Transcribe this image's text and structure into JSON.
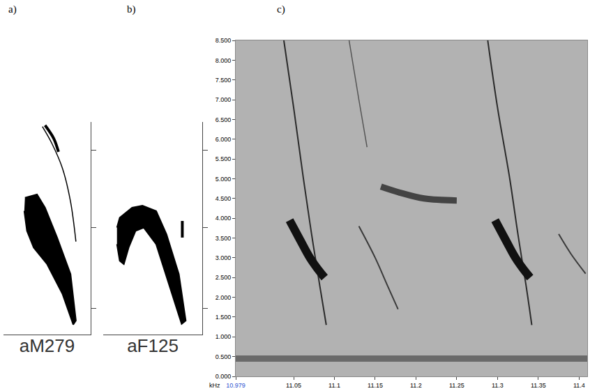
{
  "chart_data": [
    {
      "type": "shape",
      "title": "a)",
      "xlabel": "aM279",
      "xlim": [
        0,
        130
      ],
      "ylim": [
        70,
        390
      ],
      "yticks": [
        109,
        231,
        348
      ],
      "tick_labels": false,
      "grid": false,
      "series": [
        {
          "type": "fill",
          "color": "#000000",
          "line_style": "thin",
          "x": [
            32,
            50,
            62,
            80,
            100,
            108,
            104,
            88,
            65,
            45,
            35,
            31
          ],
          "values": [
            276,
            281,
            261,
            216,
            161,
            91,
            85,
            131,
            176,
            201,
            226,
            256
          ]
        },
        {
          "type": "line",
          "color": "#000000",
          "line_style": "faint",
          "x": [
            58,
            72,
            88,
            100,
            108
          ],
          "values": [
            383,
            358,
            320,
            270,
            210
          ]
        },
        {
          "type": "line",
          "color": "#000000",
          "line_style": "medium",
          "x": [
            62,
            75,
            82
          ],
          "values": [
            385,
            365,
            345
          ]
        }
      ]
    },
    {
      "type": "shape",
      "title": "b)",
      "xlabel": "aF125",
      "xlim": [
        148,
        292
      ],
      "ylim": [
        70,
        390
      ],
      "yticks": [
        109,
        231,
        348
      ],
      "tick_labels": false,
      "grid": false,
      "series": [
        {
          "type": "fill",
          "color": "#000000",
          "line_style": "thin",
          "x": [
            168,
            172,
            190,
            205,
            225,
            240,
            258,
            268,
            262,
            245,
            225,
            207,
            195,
            185,
            178,
            172,
            168
          ],
          "values": [
            231,
            246,
            261,
            264,
            256,
            221,
            161,
            91,
            86,
            141,
            206,
            231,
            226,
            201,
            176,
            181,
            206
          ]
        },
        {
          "type": "line",
          "color": "#000000",
          "line_style": "medium",
          "x": [
            263,
            263
          ],
          "values": [
            241,
            216
          ]
        }
      ]
    },
    {
      "type": "spectrogram",
      "title": "c)",
      "annotations": [
        "kHz"
      ],
      "xlim": [
        10.979,
        11.41
      ],
      "xticks": [
        10.979,
        11.05,
        11.1,
        11.15,
        11.2,
        11.25,
        11.3,
        11.35,
        11.4
      ],
      "ylim": [
        0,
        8.5
      ],
      "yticks": [
        {
          "value": 0,
          "label": "0.000"
        },
        {
          "value": 0.5,
          "label": "0.500"
        },
        {
          "value": 1,
          "label": "1.000"
        },
        {
          "value": 1.5,
          "label": "1.500"
        },
        {
          "value": 2,
          "label": "2.000"
        },
        {
          "value": 2.5,
          "label": "2.500"
        },
        {
          "value": 3,
          "label": "3.000"
        },
        {
          "value": 3.5,
          "label": "3.500"
        },
        {
          "value": 4,
          "label": "4.000"
        },
        {
          "value": 4.5,
          "label": "4.500"
        },
        {
          "value": 5,
          "label": "5.000"
        },
        {
          "value": 5.5,
          "label": "5.500"
        },
        {
          "value": 6,
          "label": "6.000"
        },
        {
          "value": 6.5,
          "label": "6.500"
        },
        {
          "value": 7,
          "label": "7.000"
        },
        {
          "value": 7.5,
          "label": "7.500"
        },
        {
          "value": 8,
          "label": "8.000"
        },
        {
          "value": 8.5,
          "label": "8.500"
        }
      ],
      "grid": false,
      "series": [
        {
          "type": "line",
          "color": "#6a6a6a",
          "line_style": "band",
          "x": [
            10.979,
            11.41
          ],
          "values": [
            0.45,
            0.45
          ]
        },
        {
          "type": "line",
          "color": "#2a2a2a",
          "line_style": "thin",
          "x": [
            11.038,
            11.05,
            11.062,
            11.072,
            11.082,
            11.09
          ],
          "values": [
            8.5,
            6.8,
            5.0,
            3.6,
            2.3,
            1.3
          ]
        },
        {
          "type": "line",
          "color": "#111111",
          "line_style": "thick",
          "x": [
            11.045,
            11.058,
            11.07,
            11.082,
            11.088
          ],
          "values": [
            3.95,
            3.45,
            3.0,
            2.65,
            2.5
          ]
        },
        {
          "type": "line",
          "color": "#555555",
          "line_style": "faint",
          "x": [
            11.118,
            11.13,
            11.14
          ],
          "values": [
            8.5,
            7.0,
            5.8
          ]
        },
        {
          "type": "line",
          "color": "#3a3a3a",
          "line_style": "thin",
          "x": [
            11.13,
            11.15,
            11.165,
            11.178
          ],
          "values": [
            3.8,
            3.0,
            2.3,
            1.7
          ]
        },
        {
          "type": "line",
          "color": "#444444",
          "line_style": "band",
          "x": [
            11.157,
            11.18,
            11.21,
            11.25
          ],
          "values": [
            4.8,
            4.65,
            4.5,
            4.45
          ]
        },
        {
          "type": "line",
          "color": "#2a2a2a",
          "line_style": "thin",
          "x": [
            11.288,
            11.3,
            11.315,
            11.325,
            11.335,
            11.342
          ],
          "values": [
            8.5,
            6.8,
            5.0,
            3.6,
            2.3,
            1.3
          ]
        },
        {
          "type": "line",
          "color": "#111111",
          "line_style": "thick",
          "x": [
            11.297,
            11.31,
            11.322,
            11.334,
            11.34
          ],
          "values": [
            3.95,
            3.45,
            3.0,
            2.65,
            2.5
          ]
        },
        {
          "type": "line",
          "color": "#3a3a3a",
          "line_style": "thin",
          "x": [
            11.375,
            11.39,
            11.408
          ],
          "values": [
            3.6,
            3.1,
            2.6
          ]
        }
      ]
    }
  ]
}
